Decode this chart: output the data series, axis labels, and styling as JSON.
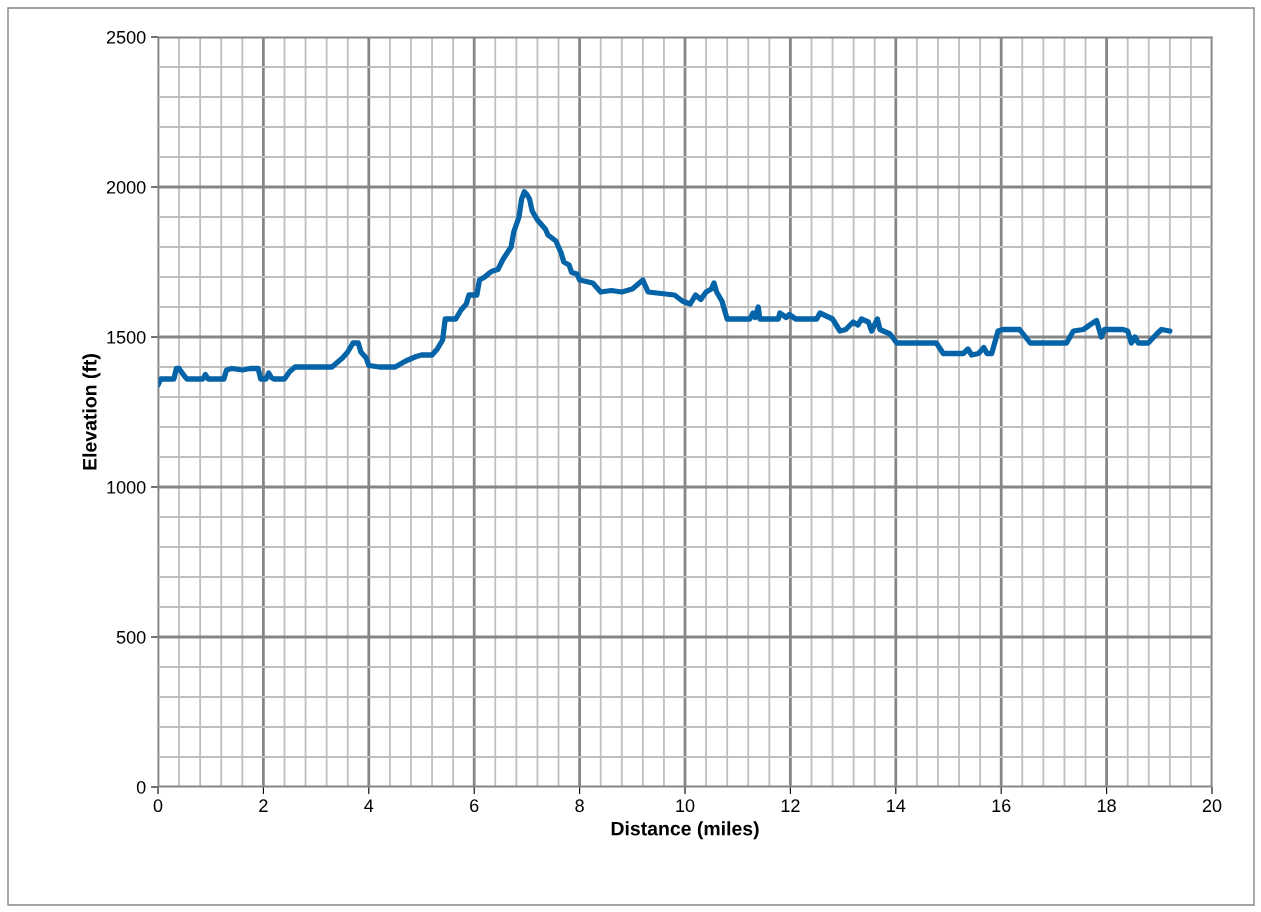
{
  "chart_data": {
    "type": "line",
    "xlabel": "Distance (miles)",
    "ylabel": "Elevation (ft)",
    "xlim": [
      0,
      20
    ],
    "xticks": [
      0,
      2,
      4,
      6,
      8,
      10,
      12,
      14,
      16,
      18,
      20
    ],
    "ylim": [
      0,
      2500
    ],
    "yticks": [
      0,
      500,
      1000,
      1500,
      2000,
      2500
    ],
    "grid": true,
    "marker": "none",
    "line_style": "solid",
    "series": [
      {
        "color": "#0563a8",
        "x": [
          0,
          0.05,
          0.3,
          0.35,
          0.4,
          0.5,
          0.55,
          0.85,
          0.9,
          0.95,
          1.25,
          1.3,
          1.4,
          1.6,
          1.75,
          1.9,
          1.95,
          2.05,
          2.1,
          2.15,
          2.2,
          2.4,
          2.5,
          2.6,
          3.3,
          3.5,
          3.6,
          3.7,
          3.8,
          3.85,
          3.95,
          4.0,
          4.2,
          4.5,
          4.7,
          4.9,
          5.0,
          5.2,
          5.25,
          5.3,
          5.4,
          5.45,
          5.65,
          5.75,
          5.85,
          5.9,
          6.05,
          6.1,
          6.2,
          6.3,
          6.35,
          6.45,
          6.55,
          6.7,
          6.75,
          6.85,
          6.9,
          6.95,
          7.0,
          7.05,
          7.1,
          7.2,
          7.35,
          7.4,
          7.55,
          7.65,
          7.7,
          7.8,
          7.85,
          7.95,
          8.0,
          8.25,
          8.4,
          8.6,
          8.8,
          9.0,
          9.2,
          9.3,
          9.8,
          9.95,
          10.1,
          10.2,
          10.3,
          10.4,
          10.5,
          10.55,
          10.6,
          10.7,
          10.8,
          11.23,
          11.29,
          11.33,
          11.39,
          11.42,
          11.77,
          11.8,
          11.92,
          11.98,
          12.1,
          12.5,
          12.56,
          12.8,
          12.94,
          13.05,
          13.19,
          13.28,
          13.35,
          13.48,
          13.54,
          13.65,
          13.7,
          13.89,
          14.02,
          14.77,
          14.9,
          15.28,
          15.37,
          15.44,
          15.57,
          15.67,
          15.73,
          15.82,
          15.94,
          16.03,
          16.35,
          16.55,
          17.24,
          17.37,
          17.56,
          17.68,
          17.81,
          17.9,
          17.96,
          18.31,
          18.4,
          18.47,
          18.54,
          18.6,
          18.79,
          18.95,
          19.04,
          19.2
        ],
        "values": [
          1340,
          1360,
          1360,
          1395,
          1395,
          1370,
          1360,
          1360,
          1375,
          1360,
          1360,
          1390,
          1395,
          1390,
          1395,
          1395,
          1360,
          1360,
          1380,
          1365,
          1360,
          1360,
          1385,
          1400,
          1400,
          1430,
          1450,
          1480,
          1480,
          1450,
          1430,
          1405,
          1400,
          1400,
          1420,
          1435,
          1440,
          1440,
          1450,
          1460,
          1490,
          1560,
          1560,
          1590,
          1610,
          1640,
          1640,
          1690,
          1700,
          1715,
          1720,
          1725,
          1760,
          1800,
          1850,
          1900,
          1960,
          1984,
          1975,
          1960,
          1920,
          1890,
          1860,
          1840,
          1820,
          1780,
          1750,
          1740,
          1715,
          1710,
          1690,
          1680,
          1650,
          1655,
          1650,
          1660,
          1690,
          1650,
          1640,
          1620,
          1610,
          1640,
          1625,
          1650,
          1660,
          1680,
          1650,
          1620,
          1560,
          1560,
          1580,
          1565,
          1600,
          1560,
          1560,
          1580,
          1565,
          1575,
          1560,
          1560,
          1580,
          1560,
          1520,
          1525,
          1550,
          1540,
          1560,
          1550,
          1520,
          1560,
          1525,
          1510,
          1480,
          1480,
          1445,
          1445,
          1460,
          1440,
          1445,
          1465,
          1445,
          1445,
          1520,
          1525,
          1525,
          1480,
          1480,
          1520,
          1525,
          1540,
          1555,
          1500,
          1525,
          1525,
          1520,
          1480,
          1500,
          1480,
          1480,
          1510,
          1525,
          1520
        ]
      }
    ]
  }
}
